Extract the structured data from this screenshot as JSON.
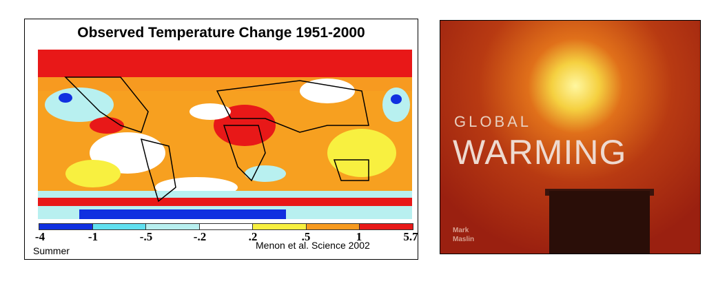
{
  "figure": {
    "title": "Observed Temperature Change 1951-2000",
    "colorbar": {
      "ticks": [
        "-4",
        "-1",
        "-.5",
        "-.2",
        ".2",
        ".5",
        "1",
        "5.7"
      ],
      "colors": [
        "#1030e0",
        "#60e0f0",
        "#b8f0f0",
        "#ffffff",
        "#f8f040",
        "#f79a20",
        "#e81818"
      ]
    },
    "season_label": "Summer",
    "citation": "Menon et al. Science 2002"
  },
  "book_cover": {
    "title_line1": "GLOBAL",
    "title_line2": "WARMING",
    "author_line1": "Mark",
    "author_line2": "Maslin"
  }
}
